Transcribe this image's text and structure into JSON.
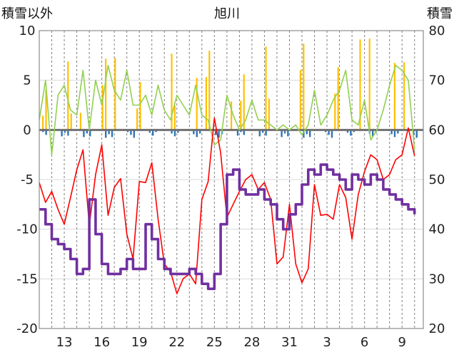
{
  "chart_data": {
    "type": "line",
    "title": "旭川",
    "left_axis_label": "積雪以外",
    "right_axis_label": "積雪",
    "left_ylim": [
      -20,
      10
    ],
    "left_ticks": [
      10,
      5,
      0,
      -5,
      -10,
      -15,
      -20
    ],
    "right_ylim": [
      20,
      80
    ],
    "right_ticks": [
      80,
      70,
      60,
      50,
      40,
      30,
      20
    ],
    "x_tick_labels": [
      "13",
      "16",
      "19",
      "22",
      "25",
      "28",
      "31",
      "3",
      "6",
      "9"
    ],
    "grid": true,
    "colors": {
      "temperature": "#ff0000",
      "humidity_like": "#92d050",
      "sunshine": "#ffc000",
      "precip": "#2e75b6",
      "snow_depth": "#7030a0",
      "zero_line": "#707070"
    },
    "series": [
      {
        "key": "red",
        "axis": "left",
        "x": [
          11.0,
          11.5,
          12.0,
          12.5,
          13.0,
          13.5,
          14.0,
          14.5,
          15.0,
          15.5,
          16.0,
          16.5,
          17.0,
          17.5,
          18.0,
          18.5,
          19.0,
          19.5,
          20.0,
          20.5,
          21.0,
          21.5,
          22.0,
          22.5,
          23.0,
          23.5,
          24.0,
          24.5,
          25.0,
          25.5,
          26.0,
          26.5,
          27.0,
          27.5,
          28.0,
          28.5,
          29.0,
          29.5,
          30.0,
          30.5,
          31.0,
          31.5,
          32.0,
          32.5,
          33.0,
          33.5,
          34.0,
          34.5,
          35.0,
          35.5,
          36.0,
          36.5,
          37.0,
          37.5,
          38.0,
          38.5,
          39.0,
          39.5,
          40.0,
          40.5,
          41.0
        ],
        "values": [
          -5.3,
          -7.3,
          -6.2,
          -8.0,
          -9.5,
          -6.8,
          -4.0,
          -2.0,
          -9.6,
          -4.5,
          -1.5,
          -8.6,
          -5.8,
          -4.9,
          -10.5,
          -13.0,
          -5.2,
          -5.3,
          -3.3,
          -9.0,
          -13.5,
          -14.3,
          -16.5,
          -15.0,
          -14.5,
          -15.5,
          -7.0,
          -5.2,
          1.2,
          -2.3,
          -8.8,
          -7.5,
          -6.2,
          -5.0,
          -4.5,
          -6.0,
          -5.3,
          -7.0,
          -13.5,
          -12.8,
          -7.5,
          -13.5,
          -15.4,
          -14.0,
          -5.5,
          -8.6,
          -8.5,
          -9.0,
          -5.5,
          -6.8,
          -11.0,
          -6.5,
          -4.2,
          -2.5,
          -3.0,
          -5.0,
          -4.5,
          -3.0,
          -2.5,
          0.2,
          -2.6
        ]
      },
      {
        "key": "green",
        "axis": "left",
        "x": [
          11.0,
          11.5,
          12.0,
          12.5,
          13.0,
          13.5,
          14.0,
          14.5,
          15.0,
          15.5,
          16.0,
          16.5,
          17.0,
          17.5,
          18.0,
          18.5,
          19.0,
          19.5,
          20.0,
          20.5,
          21.0,
          21.5,
          22.0,
          22.5,
          23.0,
          23.5,
          24.0,
          24.5,
          25.0,
          25.5,
          26.0,
          26.5,
          27.0,
          27.5,
          28.0,
          28.5,
          29.0,
          29.5,
          30.0,
          30.5,
          31.0,
          31.5,
          32.0,
          32.5,
          33.0,
          33.5,
          34.0,
          34.5,
          35.0,
          35.5,
          36.0,
          36.5,
          37.0,
          37.5,
          38.0,
          38.5,
          39.0,
          39.5,
          40.0,
          40.5,
          41.0
        ],
        "values": [
          1.0,
          5.0,
          -2.5,
          3.5,
          4.5,
          2.0,
          1.5,
          6.0,
          0.0,
          5.0,
          2.5,
          6.5,
          4.0,
          3.0,
          6.0,
          2.5,
          2.5,
          3.5,
          1.5,
          4.5,
          2.0,
          1.0,
          3.5,
          2.5,
          1.5,
          4.5,
          1.5,
          1.0,
          -1.5,
          -1.0,
          3.5,
          1.5,
          0.0,
          1.0,
          3.0,
          1.0,
          1.0,
          0.5,
          0.0,
          0.5,
          0.0,
          0.5,
          -0.5,
          0.5,
          4.0,
          0.5,
          1.5,
          3.0,
          4.0,
          6.0,
          1.0,
          0.5,
          3.0,
          -1.0,
          0.0,
          2.0,
          4.5,
          6.5,
          6.0,
          5.0,
          -2.0
        ]
      },
      {
        "key": "purple",
        "axis": "right",
        "x": [
          11.0,
          11.5,
          12.0,
          12.5,
          13.0,
          13.5,
          14.0,
          14.5,
          15.0,
          15.5,
          16.0,
          16.5,
          17.0,
          17.5,
          18.0,
          18.5,
          19.0,
          19.5,
          20.0,
          20.5,
          21.0,
          21.5,
          22.0,
          22.5,
          23.0,
          23.5,
          24.0,
          24.5,
          25.0,
          25.5,
          26.0,
          26.5,
          27.0,
          27.5,
          28.0,
          28.5,
          29.0,
          29.5,
          30.0,
          30.5,
          31.0,
          31.5,
          32.0,
          32.5,
          33.0,
          33.5,
          34.0,
          34.5,
          35.0,
          35.5,
          36.0,
          36.5,
          37.0,
          37.5,
          38.0,
          38.5,
          39.0,
          39.5,
          40.0,
          40.5,
          41.0
        ],
        "values": [
          44,
          41,
          38,
          37,
          36,
          34,
          31,
          32,
          46,
          39,
          33,
          31,
          31,
          32,
          34,
          32,
          32,
          41,
          38,
          34,
          32,
          31,
          31,
          31,
          32,
          31,
          29,
          28,
          31,
          41,
          51,
          52,
          48,
          47,
          47,
          48,
          46,
          45,
          42,
          40,
          43,
          45,
          49,
          52,
          51,
          53,
          52,
          51,
          50,
          48,
          51,
          50,
          49,
          51,
          50,
          48,
          47,
          46,
          45,
          44,
          43
        ]
      }
    ]
  }
}
